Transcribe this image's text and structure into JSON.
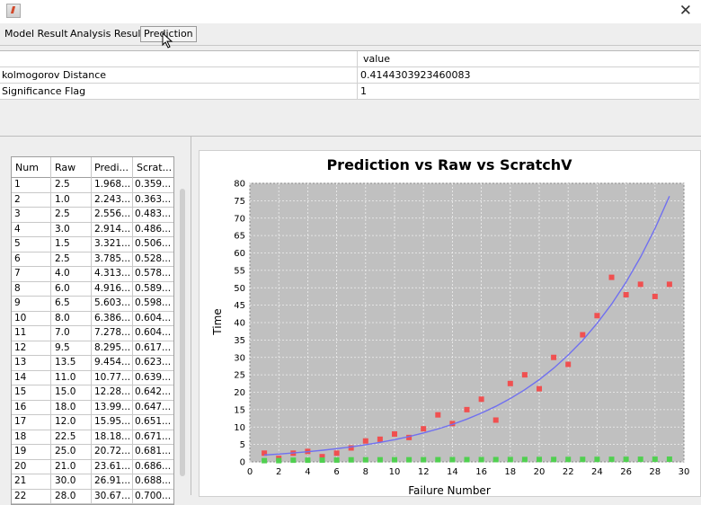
{
  "window": {
    "close_symbol": "✕"
  },
  "tabs": [
    {
      "label": "Model Result",
      "active": false
    },
    {
      "label": "Analysis Result",
      "active": false
    },
    {
      "label": "Prediction",
      "active": true
    }
  ],
  "ks_table": {
    "header_value": "value",
    "rows": [
      {
        "name": "kolmogorov Distance",
        "value": "0.4144303923460083"
      },
      {
        "name": "Significance Flag",
        "value": "1"
      }
    ]
  },
  "prediction_table": {
    "columns": [
      "Num",
      "Raw",
      "Predi...",
      "Scrat..."
    ],
    "rows": [
      [
        "1",
        "2.5",
        "1.968...",
        "0.359..."
      ],
      [
        "2",
        "1.0",
        "2.243...",
        "0.363..."
      ],
      [
        "3",
        "2.5",
        "2.556...",
        "0.483..."
      ],
      [
        "4",
        "3.0",
        "2.914...",
        "0.486..."
      ],
      [
        "5",
        "1.5",
        "3.321...",
        "0.506..."
      ],
      [
        "6",
        "2.5",
        "3.785...",
        "0.528..."
      ],
      [
        "7",
        "4.0",
        "4.313...",
        "0.578..."
      ],
      [
        "8",
        "6.0",
        "4.916...",
        "0.589..."
      ],
      [
        "9",
        "6.5",
        "5.603...",
        "0.598..."
      ],
      [
        "10",
        "8.0",
        "6.386...",
        "0.604..."
      ],
      [
        "11",
        "7.0",
        "7.278...",
        "0.604..."
      ],
      [
        "12",
        "9.5",
        "8.295...",
        "0.617..."
      ],
      [
        "13",
        "13.5",
        "9.454...",
        "0.623..."
      ],
      [
        "14",
        "11.0",
        "10.77...",
        "0.639..."
      ],
      [
        "15",
        "15.0",
        "12.28...",
        "0.642..."
      ],
      [
        "16",
        "18.0",
        "13.99...",
        "0.647..."
      ],
      [
        "17",
        "12.0",
        "15.95...",
        "0.651..."
      ],
      [
        "18",
        "22.5",
        "18.18...",
        "0.671..."
      ],
      [
        "19",
        "25.0",
        "20.72...",
        "0.681..."
      ],
      [
        "20",
        "21.0",
        "23.61...",
        "0.686..."
      ],
      [
        "21",
        "30.0",
        "26.91...",
        "0.688..."
      ],
      [
        "22",
        "28.0",
        "30.67...",
        "0.700..."
      ]
    ]
  },
  "chart_data": {
    "type": "scatter",
    "title": "Prediction vs Raw vs ScratchV",
    "xlabel": "Failure Number",
    "ylabel": "Time",
    "xlim": [
      0,
      30
    ],
    "ylim": [
      0,
      80
    ],
    "x_ticks": [
      0,
      2,
      4,
      6,
      8,
      10,
      12,
      14,
      16,
      18,
      20,
      22,
      24,
      26,
      28,
      30
    ],
    "y_ticks": [
      0,
      5,
      10,
      15,
      20,
      25,
      30,
      35,
      40,
      45,
      50,
      55,
      60,
      65,
      70,
      75,
      80
    ],
    "grid": true,
    "colors": {
      "plot_bg": "#c0c0c0",
      "raw": "#f05050",
      "prediction": "#7070f0",
      "scratch": "#50d050"
    },
    "series": [
      {
        "kind": "points",
        "color_key": "raw",
        "x": [
          1,
          2,
          3,
          4,
          5,
          6,
          7,
          8,
          9,
          10,
          11,
          12,
          13,
          14,
          15,
          16,
          17,
          18,
          19,
          20,
          21,
          22,
          23,
          24,
          25,
          26,
          27,
          28,
          29
        ],
        "y": [
          2.5,
          1.0,
          2.5,
          3.0,
          1.5,
          2.5,
          4.0,
          6.0,
          6.5,
          8.0,
          7.0,
          9.5,
          13.5,
          11.0,
          15.0,
          18.0,
          12.0,
          22.5,
          25.0,
          21.0,
          30.0,
          28.0,
          36.5,
          42.0,
          53.0,
          48.0,
          51.0,
          47.5,
          51.0
        ]
      },
      {
        "kind": "line",
        "color_key": "prediction",
        "x": [
          1,
          2,
          3,
          4,
          5,
          6,
          7,
          8,
          9,
          10,
          11,
          12,
          13,
          14,
          15,
          16,
          17,
          18,
          19,
          20,
          21,
          22,
          23,
          24,
          25,
          26,
          27,
          28,
          29
        ],
        "y": [
          1.968,
          2.243,
          2.556,
          2.914,
          3.321,
          3.785,
          4.313,
          4.916,
          5.603,
          6.386,
          7.278,
          8.295,
          9.454,
          10.77,
          12.28,
          13.99,
          15.95,
          18.18,
          20.72,
          23.61,
          26.91,
          30.67,
          34.9,
          39.8,
          45.3,
          51.6,
          58.8,
          67.0,
          76.3
        ]
      },
      {
        "kind": "points",
        "color_key": "scratch",
        "x": [
          1,
          2,
          3,
          4,
          5,
          6,
          7,
          8,
          9,
          10,
          11,
          12,
          13,
          14,
          15,
          16,
          17,
          18,
          19,
          20,
          21,
          22,
          23,
          24,
          25,
          26,
          27,
          28,
          29
        ],
        "y": [
          0.359,
          0.363,
          0.483,
          0.486,
          0.506,
          0.528,
          0.578,
          0.589,
          0.598,
          0.604,
          0.604,
          0.617,
          0.623,
          0.639,
          0.642,
          0.647,
          0.651,
          0.671,
          0.681,
          0.686,
          0.688,
          0.7,
          0.71,
          0.72,
          0.73,
          0.74,
          0.75,
          0.76,
          0.77
        ]
      }
    ]
  }
}
